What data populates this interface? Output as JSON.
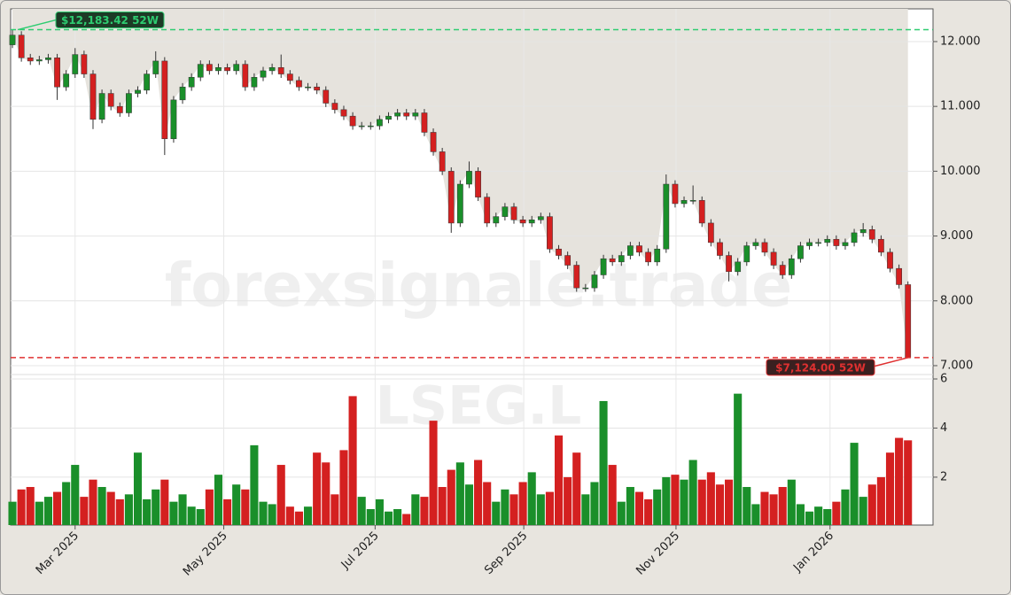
{
  "chart_data": {
    "type": "candlestick",
    "watermarks": [
      "forexsignale.trade",
      "LSEG.L"
    ],
    "up_color": "#1a8f2a",
    "down_color": "#d42020",
    "xlim": [
      -0.2,
      102.8
    ],
    "xticks": [
      {
        "value": 7.0,
        "label": "Mar 2025"
      },
      {
        "value": 23.6,
        "label": "May 2025"
      },
      {
        "value": 40.5,
        "label": "Jul 2025"
      },
      {
        "value": 57.1,
        "label": "Sep 2025"
      },
      {
        "value": 74.1,
        "label": "Nov 2025"
      },
      {
        "value": 91.3,
        "label": "Jan 2026"
      }
    ],
    "ylim": [
      6863,
      12505
    ],
    "yticks": [
      {
        "value": 7000,
        "label": "7.000"
      },
      {
        "value": 8000,
        "label": "8.000"
      },
      {
        "value": 9000,
        "label": "9.000"
      },
      {
        "value": 10000,
        "label": "10.000"
      },
      {
        "value": 11000,
        "label": "11.000"
      },
      {
        "value": 12000,
        "label": "12.000"
      }
    ],
    "y2lim": [
      0.05,
      6.18
    ],
    "y2ticks": [
      2,
      4,
      6
    ],
    "grid": true,
    "open": [
      11950,
      12100,
      11750,
      11700,
      11720,
      11750,
      11300,
      11500,
      11800,
      11500,
      10800,
      11200,
      11000,
      10900,
      11200,
      11250,
      11500,
      11700,
      10500,
      11100,
      11300,
      11450,
      11650,
      11550,
      11600,
      11550,
      11650,
      11300,
      11450,
      11550,
      11600,
      11500,
      11400,
      11300,
      11300,
      11250,
      11050,
      10950,
      10850,
      10700,
      10700,
      10700,
      10800,
      10850,
      10900,
      10850,
      10900,
      10600,
      10300,
      10000,
      9200,
      9800,
      10000,
      9600,
      9200,
      9300,
      9450,
      9250,
      9200,
      9250,
      9300,
      8800,
      8700,
      8550,
      8200,
      8200,
      8400,
      8650,
      8600,
      8700,
      8850,
      8750,
      8600,
      8800,
      9800,
      9500,
      9550,
      9550,
      9200,
      8900,
      8700,
      8450,
      8600,
      8850,
      8900,
      8750,
      8550,
      8400,
      8650,
      8850,
      8900,
      8900,
      8950,
      8850,
      8900,
      9050,
      9100,
      8950,
      8750,
      8500,
      8250
    ],
    "high": [
      12183.42,
      12160,
      11810,
      11780,
      11810,
      11810,
      11560,
      11900,
      11860,
      11560,
      11260,
      11260,
      11060,
      11260,
      11310,
      11560,
      11850,
      11760,
      11160,
      11360,
      11510,
      11710,
      11710,
      11660,
      11660,
      11710,
      11710,
      11510,
      11610,
      11660,
      11800,
      11560,
      11460,
      11360,
      11360,
      11310,
      11110,
      11010,
      10910,
      10760,
      10760,
      10860,
      10910,
      10960,
      10960,
      10960,
      10960,
      10660,
      10360,
      10060,
      9860,
      10150,
      10060,
      9660,
      9360,
      9510,
      9510,
      9310,
      9310,
      9360,
      9360,
      8860,
      8760,
      8610,
      8260,
      8460,
      8710,
      8710,
      8760,
      8910,
      8910,
      8810,
      8860,
      9950,
      9860,
      9610,
      9780,
      9610,
      9260,
      8960,
      8760,
      8660,
      8910,
      8960,
      8960,
      8810,
      8610,
      8710,
      8910,
      8960,
      8960,
      9010,
      9010,
      8960,
      9110,
      9200,
      9160,
      9010,
      8810,
      8560,
      8300
    ],
    "low": [
      11900,
      11690,
      11640,
      11640,
      11660,
      11100,
      11240,
      11440,
      11440,
      10650,
      10740,
      10940,
      10840,
      10840,
      11140,
      11190,
      11440,
      10250,
      10440,
      11040,
      11240,
      11390,
      11490,
      11490,
      11490,
      11490,
      11240,
      11240,
      11390,
      11490,
      11440,
      11340,
      11240,
      11240,
      11190,
      10990,
      10890,
      10790,
      10640,
      10640,
      10640,
      10640,
      10740,
      10790,
      10790,
      10790,
      10540,
      10240,
      9940,
      9050,
      9140,
      9740,
      9540,
      9140,
      9140,
      9240,
      9190,
      9140,
      9140,
      9190,
      8740,
      8640,
      8490,
      8140,
      8140,
      8140,
      8340,
      8540,
      8540,
      8640,
      8690,
      8540,
      8540,
      8740,
      9440,
      9440,
      9490,
      9140,
      8840,
      8640,
      8300,
      8390,
      8540,
      8790,
      8690,
      8490,
      8340,
      8340,
      8590,
      8790,
      8840,
      8840,
      8790,
      8790,
      8840,
      8990,
      8890,
      8690,
      8440,
      8190,
      7124
    ],
    "close": [
      12100,
      11750,
      11700,
      11720,
      11750,
      11300,
      11500,
      11800,
      11500,
      10800,
      11200,
      11000,
      10900,
      11200,
      11250,
      11500,
      11700,
      10500,
      11100,
      11300,
      11450,
      11650,
      11550,
      11600,
      11550,
      11650,
      11300,
      11450,
      11550,
      11600,
      11500,
      11400,
      11300,
      11300,
      11250,
      11050,
      10950,
      10850,
      10700,
      10700,
      10700,
      10800,
      10850,
      10900,
      10850,
      10900,
      10600,
      10300,
      10000,
      9200,
      9800,
      10000,
      9600,
      9200,
      9300,
      9450,
      9250,
      9200,
      9250,
      9300,
      8800,
      8700,
      8550,
      8200,
      8200,
      8400,
      8650,
      8600,
      8700,
      8850,
      8750,
      8600,
      8800,
      9800,
      9500,
      9550,
      9550,
      9200,
      8900,
      8700,
      8450,
      8600,
      8850,
      8900,
      8750,
      8550,
      8400,
      8650,
      8850,
      8900,
      8900,
      8950,
      8850,
      8900,
      9050,
      9100,
      8950,
      8750,
      8500,
      8250,
      7124
    ],
    "volume": [
      1.0,
      1.5,
      1.6,
      1.0,
      1.2,
      1.4,
      1.8,
      2.5,
      1.2,
      1.9,
      1.6,
      1.4,
      1.1,
      1.3,
      3.0,
      1.1,
      1.5,
      1.9,
      1.0,
      1.3,
      0.8,
      0.7,
      1.5,
      2.1,
      1.1,
      1.7,
      1.5,
      3.3,
      1.0,
      0.9,
      2.5,
      0.8,
      0.6,
      0.8,
      3.0,
      2.6,
      1.3,
      3.1,
      5.3,
      1.2,
      0.7,
      1.1,
      0.6,
      0.7,
      0.5,
      1.3,
      1.2,
      4.3,
      1.6,
      2.3,
      2.6,
      1.7,
      2.7,
      1.8,
      1.0,
      1.5,
      1.3,
      1.8,
      2.2,
      1.3,
      1.4,
      3.7,
      2.0,
      3.0,
      1.3,
      1.8,
      5.1,
      2.5,
      1.0,
      1.6,
      1.4,
      1.1,
      1.5,
      2.0,
      2.1,
      1.9,
      2.7,
      1.9,
      2.2,
      1.7,
      1.9,
      5.4,
      1.6,
      0.9,
      1.4,
      1.3,
      1.6,
      1.9,
      0.9,
      0.6,
      0.8,
      0.7,
      1.0,
      1.5,
      3.4,
      1.2,
      1.7,
      2.0,
      3.0,
      3.6,
      3.5
    ],
    "annotations": [
      {
        "label": "$12,183.42 52W",
        "value": 12183.42,
        "color": "#2ecc71"
      },
      {
        "label": "$7,124.00 52W",
        "value": 7124,
        "color": "#e03030"
      }
    ]
  }
}
